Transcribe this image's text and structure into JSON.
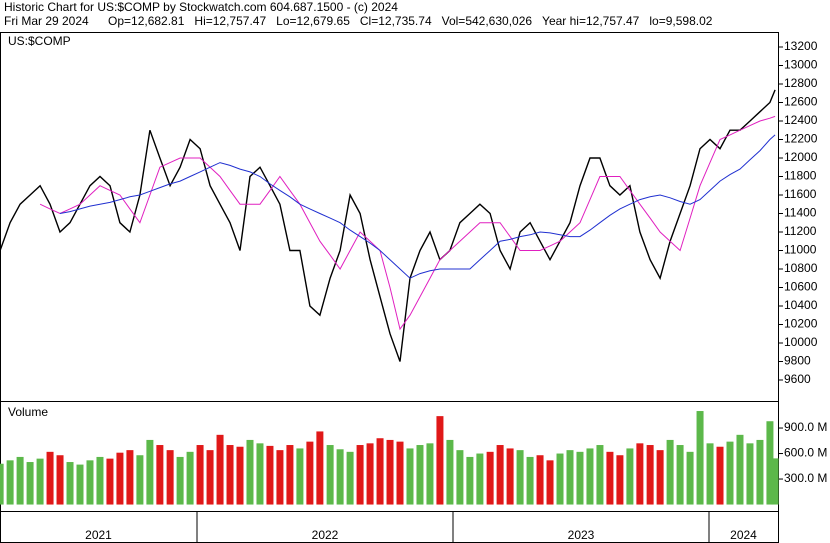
{
  "chart_data": [
    {
      "type": "line",
      "title": "Historic Chart for US:$COMP by Stockwatch.com 604.687.1500 - (c) 2024",
      "subtitle": "Fri Mar 29 2024",
      "quote": [
        "Op=12,682.81",
        "Hi=12,757.47",
        "Lo=12,679.65",
        "Cl=12,735.74",
        "Vol=542,630,026",
        "Year hi=12,757.47",
        "lo=9,598.02"
      ],
      "symbol": "US:$COMP",
      "xlim": [
        2021.2305,
        2024.2695
      ],
      "x": [
        2021.231,
        2021.27,
        2021.309,
        2021.348,
        2021.387,
        2021.426,
        2021.465,
        2021.504,
        2021.543,
        2021.582,
        2021.621,
        2021.66,
        2021.699,
        2021.738,
        2021.777,
        2021.816,
        2021.855,
        2021.895,
        2021.934,
        2021.973,
        2022.012,
        2022.051,
        2022.09,
        2022.129,
        2022.168,
        2022.207,
        2022.246,
        2022.285,
        2022.324,
        2022.363,
        2022.402,
        2022.441,
        2022.48,
        2022.52,
        2022.559,
        2022.598,
        2022.637,
        2022.676,
        2022.715,
        2022.754,
        2022.793,
        2022.832,
        2022.871,
        2022.91,
        2022.949,
        2022.988,
        2023.027,
        2023.066,
        2023.105,
        2023.145,
        2023.184,
        2023.223,
        2023.262,
        2023.301,
        2023.34,
        2023.379,
        2023.418,
        2023.457,
        2023.496,
        2023.535,
        2023.574,
        2023.613,
        2023.652,
        2023.691,
        2023.73,
        2023.77,
        2023.809,
        2023.848,
        2023.887,
        2023.926,
        2023.965,
        2024.004,
        2024.043,
        2024.082,
        2024.121,
        2024.16,
        2024.199,
        2024.238,
        2024.258
      ],
      "series": [
        {
          "color": "#000000",
          "values": [
            11000,
            11300,
            11500,
            11600,
            11700,
            11500,
            11200,
            11300,
            11500,
            11700,
            11800,
            11700,
            11300,
            11200,
            11600,
            12300,
            12000,
            11700,
            11900,
            12200,
            12100,
            11700,
            11500,
            11300,
            11000,
            11800,
            11900,
            11700,
            11500,
            11000,
            11000,
            10400,
            10300,
            10700,
            11000,
            11600,
            11400,
            10900,
            10500,
            10100,
            9800,
            10700,
            11000,
            11200,
            10900,
            11000,
            11300,
            11400,
            11500,
            11400,
            11000,
            10800,
            11200,
            11300,
            11100,
            10900,
            11100,
            11300,
            11700,
            12000,
            12000,
            11700,
            11600,
            11700,
            11200,
            10900,
            10700,
            11100,
            11400,
            11700,
            12100,
            12200,
            12100,
            12300,
            12300,
            12400,
            12500,
            12600,
            12736
          ]
        },
        {
          "color": "#e020c0",
          "values": [
            null,
            null,
            null,
            null,
            11500,
            11450,
            11400,
            11450,
            11500,
            11600,
            11700,
            11650,
            11600,
            11450,
            11300,
            11600,
            11900,
            11950,
            12000,
            12000,
            12000,
            11900,
            11800,
            11650,
            11500,
            11500,
            11500,
            11650,
            11800,
            11650,
            11500,
            11300,
            11100,
            10950,
            10800,
            11000,
            11200,
            11100,
            11000,
            10600,
            10150,
            10300,
            10500,
            10700,
            10900,
            11000,
            11100,
            11200,
            11300,
            11300,
            11300,
            11150,
            11000,
            11000,
            11000,
            11050,
            11100,
            11200,
            11300,
            11550,
            11800,
            11800,
            11800,
            11650,
            11500,
            11350,
            11200,
            11100,
            11000,
            11350,
            11700,
            11950,
            12200,
            12250,
            12300,
            12350,
            12400,
            12430,
            12450
          ]
        },
        {
          "color": "#2030d0",
          "values": [
            null,
            null,
            null,
            null,
            null,
            null,
            11400,
            11420,
            11450,
            11480,
            11500,
            11520,
            11550,
            11580,
            11600,
            11640,
            11680,
            11720,
            11750,
            11800,
            11850,
            11900,
            11950,
            11920,
            11880,
            11850,
            11800,
            11720,
            11650,
            11580,
            11500,
            11450,
            11400,
            11350,
            11300,
            11220,
            11150,
            11080,
            11000,
            10900,
            10800,
            10700,
            10750,
            10780,
            10800,
            10800,
            10800,
            10800,
            10900,
            11000,
            11100,
            11120,
            11150,
            11170,
            11200,
            11190,
            11170,
            11150,
            11150,
            11220,
            11300,
            11380,
            11450,
            11500,
            11550,
            11580,
            11600,
            11570,
            11530,
            11500,
            11550,
            11650,
            11750,
            11820,
            11880,
            11980,
            12080,
            12200,
            12250
          ]
        }
      ],
      "ylim": [
        9373,
        13362
      ],
      "yticks": [
        9600,
        9800,
        10000,
        10200,
        10400,
        10600,
        10800,
        11000,
        11200,
        11400,
        11600,
        11800,
        12000,
        12200,
        12400,
        12600,
        12800,
        13000,
        13200
      ]
    },
    {
      "type": "bar",
      "title": "Volume",
      "up_color": "#5cb84a",
      "down_color": "#e01818",
      "values": [
        480,
        520,
        560,
        500,
        540,
        620,
        580,
        500,
        470,
        520,
        560,
        540,
        610,
        640,
        580,
        760,
        700,
        640,
        560,
        620,
        700,
        640,
        820,
        700,
        680,
        760,
        720,
        690,
        640,
        700,
        660,
        740,
        860,
        700,
        650,
        620,
        700,
        720,
        780,
        760,
        740,
        660,
        700,
        720,
        1040,
        760,
        640,
        560,
        600,
        620,
        700,
        660,
        640,
        560,
        580,
        520,
        600,
        640,
        620,
        660,
        700,
        620,
        580,
        660,
        720,
        700,
        640,
        760,
        700,
        620,
        1100,
        720,
        680,
        740,
        820,
        720,
        760,
        980,
        543
      ],
      "ylim": [
        -76,
        1218
      ],
      "yticks": [
        {
          "value": 300,
          "label": "300.0 M"
        },
        {
          "value": 600,
          "label": "600.0 M"
        },
        {
          "value": 900,
          "label": "900.0 M"
        }
      ],
      "year_dividers": [
        2022,
        2023,
        2024
      ],
      "year_labels": [
        2021,
        2022,
        2023,
        2024
      ]
    }
  ]
}
